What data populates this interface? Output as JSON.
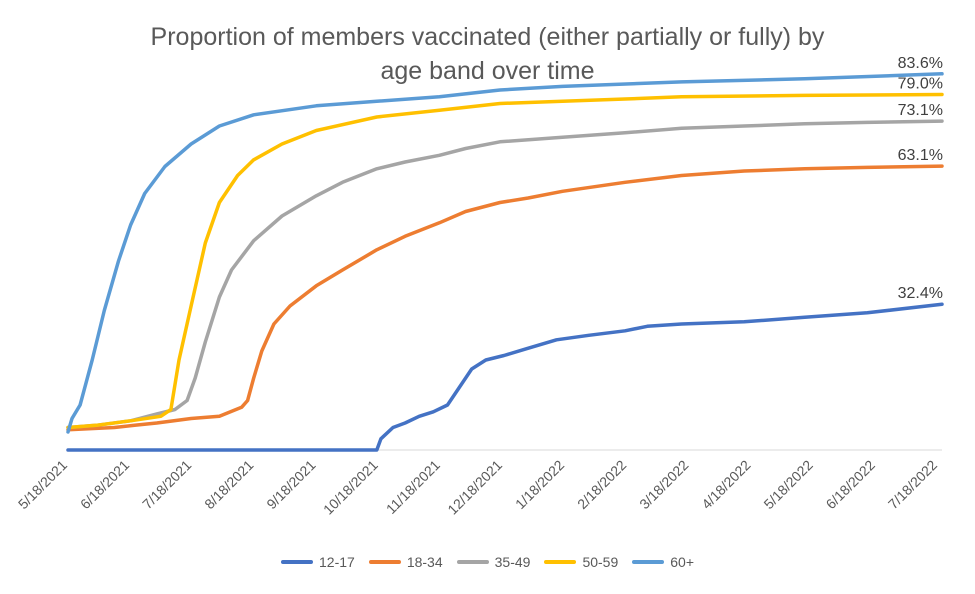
{
  "chart_data": {
    "type": "line",
    "title": "Proportion of members vaccinated (either partially or fully) by\nage band over time",
    "x_tick_labels": [
      "5/18/2021",
      "6/18/2021",
      "7/18/2021",
      "8/18/2021",
      "9/18/2021",
      "10/18/2021",
      "11/18/2021",
      "12/18/2021",
      "1/18/2022",
      "2/18/2022",
      "3/18/2022",
      "4/18/2022",
      "5/18/2022",
      "6/18/2022",
      "7/18/2022"
    ],
    "xlim": [
      "2021-05-18",
      "2022-07-25"
    ],
    "ylim": [
      0,
      90
    ],
    "grid": false,
    "legend_position": "bottom",
    "series": [
      {
        "name": "12-17",
        "color": "#4472C4",
        "end_label": "32.4%",
        "points": [
          [
            "2021-05-18",
            0
          ],
          [
            "2021-10-18",
            0
          ],
          [
            "2021-10-20",
            2.5
          ],
          [
            "2021-10-26",
            5
          ],
          [
            "2021-11-01",
            6
          ],
          [
            "2021-11-08",
            7.5
          ],
          [
            "2021-11-15",
            8.5
          ],
          [
            "2021-11-22",
            10
          ],
          [
            "2021-11-28",
            14
          ],
          [
            "2021-12-04",
            18
          ],
          [
            "2021-12-11",
            20
          ],
          [
            "2021-12-20",
            21
          ],
          [
            "2021-12-31",
            22.5
          ],
          [
            "2022-01-15",
            24.5
          ],
          [
            "2022-01-31",
            25.5
          ],
          [
            "2022-02-18",
            26.5
          ],
          [
            "2022-03-01",
            27.5
          ],
          [
            "2022-03-18",
            28
          ],
          [
            "2022-04-18",
            28.5
          ],
          [
            "2022-05-18",
            29.5
          ],
          [
            "2022-06-18",
            30.5
          ],
          [
            "2022-07-25",
            32.4
          ]
        ]
      },
      {
        "name": "18-34",
        "color": "#ED7D31",
        "end_label": "63.1%",
        "points": [
          [
            "2021-05-18",
            4.5
          ],
          [
            "2021-06-10",
            5
          ],
          [
            "2021-06-20",
            5.5
          ],
          [
            "2021-07-01",
            6
          ],
          [
            "2021-07-18",
            7
          ],
          [
            "2021-08-01",
            7.5
          ],
          [
            "2021-08-12",
            9.5
          ],
          [
            "2021-08-15",
            11
          ],
          [
            "2021-08-18",
            16
          ],
          [
            "2021-08-22",
            22
          ],
          [
            "2021-08-28",
            28
          ],
          [
            "2021-09-05",
            32
          ],
          [
            "2021-09-18",
            36.5
          ],
          [
            "2021-10-01",
            40
          ],
          [
            "2021-10-18",
            44.5
          ],
          [
            "2021-11-01",
            47.5
          ],
          [
            "2021-11-18",
            50.5
          ],
          [
            "2021-12-01",
            53
          ],
          [
            "2021-12-18",
            55
          ],
          [
            "2022-01-01",
            56
          ],
          [
            "2022-01-18",
            57.5
          ],
          [
            "2022-02-18",
            59.5
          ],
          [
            "2022-03-18",
            61
          ],
          [
            "2022-04-18",
            62
          ],
          [
            "2022-05-18",
            62.5
          ],
          [
            "2022-06-18",
            62.8
          ],
          [
            "2022-07-25",
            63.1
          ]
        ]
      },
      {
        "name": "35-49",
        "color": "#A5A5A5",
        "end_label": "73.1%",
        "points": [
          [
            "2021-05-18",
            5
          ],
          [
            "2021-06-01",
            5.5
          ],
          [
            "2021-06-18",
            6.5
          ],
          [
            "2021-07-01",
            8
          ],
          [
            "2021-07-10",
            9
          ],
          [
            "2021-07-16",
            11
          ],
          [
            "2021-07-20",
            16
          ],
          [
            "2021-07-25",
            24
          ],
          [
            "2021-08-01",
            34
          ],
          [
            "2021-08-07",
            40
          ],
          [
            "2021-08-18",
            46.5
          ],
          [
            "2021-09-01",
            52
          ],
          [
            "2021-09-18",
            56.5
          ],
          [
            "2021-10-01",
            59.5
          ],
          [
            "2021-10-18",
            62.5
          ],
          [
            "2021-11-01",
            64
          ],
          [
            "2021-11-18",
            65.5
          ],
          [
            "2021-12-01",
            67
          ],
          [
            "2021-12-18",
            68.5
          ],
          [
            "2022-01-18",
            69.5
          ],
          [
            "2022-02-18",
            70.5
          ],
          [
            "2022-03-18",
            71.5
          ],
          [
            "2022-04-18",
            72
          ],
          [
            "2022-05-18",
            72.5
          ],
          [
            "2022-06-18",
            72.8
          ],
          [
            "2022-07-25",
            73.1
          ]
        ]
      },
      {
        "name": "50-59",
        "color": "#FFC000",
        "end_label": "79.0%",
        "points": [
          [
            "2021-05-18",
            5
          ],
          [
            "2021-06-01",
            5.5
          ],
          [
            "2021-06-18",
            6.5
          ],
          [
            "2021-07-03",
            7.5
          ],
          [
            "2021-07-08",
            9
          ],
          [
            "2021-07-12",
            20
          ],
          [
            "2021-07-18",
            32
          ],
          [
            "2021-07-25",
            46
          ],
          [
            "2021-08-01",
            55
          ],
          [
            "2021-08-10",
            61
          ],
          [
            "2021-08-18",
            64.5
          ],
          [
            "2021-09-01",
            68
          ],
          [
            "2021-09-18",
            71
          ],
          [
            "2021-10-18",
            74
          ],
          [
            "2021-11-18",
            75.5
          ],
          [
            "2021-12-18",
            77
          ],
          [
            "2022-01-18",
            77.5
          ],
          [
            "2022-02-18",
            78
          ],
          [
            "2022-03-18",
            78.5
          ],
          [
            "2022-05-18",
            78.8
          ],
          [
            "2022-07-25",
            79.0
          ]
        ]
      },
      {
        "name": "60+",
        "color": "#5B9BD5",
        "end_label": "83.6%",
        "points": [
          [
            "2021-05-18",
            4
          ],
          [
            "2021-05-20",
            7
          ],
          [
            "2021-05-24",
            10
          ],
          [
            "2021-05-30",
            20
          ],
          [
            "2021-06-05",
            31
          ],
          [
            "2021-06-12",
            42
          ],
          [
            "2021-06-18",
            50
          ],
          [
            "2021-06-25",
            57
          ],
          [
            "2021-07-05",
            63
          ],
          [
            "2021-07-18",
            68
          ],
          [
            "2021-08-01",
            72
          ],
          [
            "2021-08-18",
            74.5
          ],
          [
            "2021-09-18",
            76.5
          ],
          [
            "2021-10-18",
            77.5
          ],
          [
            "2021-11-18",
            78.5
          ],
          [
            "2021-12-18",
            80
          ],
          [
            "2022-01-18",
            80.8
          ],
          [
            "2022-03-18",
            81.8
          ],
          [
            "2022-05-18",
            82.5
          ],
          [
            "2022-07-25",
            83.6
          ]
        ]
      }
    ]
  }
}
